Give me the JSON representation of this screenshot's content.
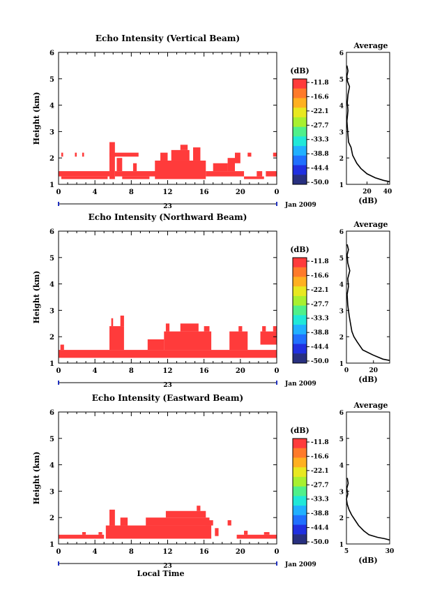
{
  "chart_data": [
    {
      "type": "heatmap",
      "title": "Echo Intensity (Vertical Beam)",
      "ylabel": "Height (km)",
      "ylim": [
        1,
        6
      ],
      "yticks": [
        "1",
        "2",
        "3",
        "4",
        "5",
        "6"
      ],
      "xlim": [
        0,
        24
      ],
      "xticks": [
        "0",
        "4",
        "8",
        "12",
        "16",
        "20",
        "0"
      ],
      "date_label": "23",
      "month_label": "Jan 2009",
      "colorbar": {
        "unit": "(dB)",
        "levels": [
          "-11.8",
          "-16.6",
          "-22.1",
          "-27.7",
          "-33.3",
          "-38.8",
          "-44.4",
          "-50.0"
        ]
      },
      "blocks": [
        {
          "x0": 0,
          "x1": 5.6,
          "y0": 1.3,
          "y1": 1.5
        },
        {
          "x0": 0.3,
          "x1": 5.4,
          "y0": 1.2,
          "y1": 1.3
        },
        {
          "x0": 0.3,
          "x1": 0.5,
          "y0": 2.05,
          "y1": 2.2
        },
        {
          "x0": 1.8,
          "x1": 2.0,
          "y0": 2.05,
          "y1": 2.2
        },
        {
          "x0": 2.6,
          "x1": 2.8,
          "y0": 2.05,
          "y1": 2.2
        },
        {
          "x0": 5.6,
          "x1": 6.2,
          "y0": 1.2,
          "y1": 2.6
        },
        {
          "x0": 5.6,
          "x1": 8.8,
          "y0": 2.05,
          "y1": 2.2
        },
        {
          "x0": 6.2,
          "x1": 10.8,
          "y0": 1.3,
          "y1": 1.5
        },
        {
          "x0": 6.4,
          "x1": 7.0,
          "y0": 1.5,
          "y1": 2.0
        },
        {
          "x0": 7.0,
          "x1": 10.0,
          "y0": 1.2,
          "y1": 1.3
        },
        {
          "x0": 8.2,
          "x1": 8.6,
          "y0": 1.5,
          "y1": 1.8
        },
        {
          "x0": 10.6,
          "x1": 16.2,
          "y0": 1.2,
          "y1": 1.9
        },
        {
          "x0": 11.2,
          "x1": 12.0,
          "y0": 1.9,
          "y1": 2.2
        },
        {
          "x0": 12.4,
          "x1": 14.4,
          "y0": 1.9,
          "y1": 2.3
        },
        {
          "x0": 13.4,
          "x1": 14.2,
          "y0": 2.3,
          "y1": 2.5
        },
        {
          "x0": 14.8,
          "x1": 15.6,
          "y0": 1.9,
          "y1": 2.4
        },
        {
          "x0": 16.2,
          "x1": 20.4,
          "y0": 1.3,
          "y1": 1.5
        },
        {
          "x0": 17.0,
          "x1": 18.6,
          "y0": 1.5,
          "y1": 1.8
        },
        {
          "x0": 18.6,
          "x1": 19.4,
          "y0": 1.5,
          "y1": 2.0
        },
        {
          "x0": 19.4,
          "x1": 20.0,
          "y0": 1.8,
          "y1": 2.2
        },
        {
          "x0": 20.4,
          "x1": 22.6,
          "y0": 1.2,
          "y1": 1.3
        },
        {
          "x0": 20.8,
          "x1": 21.2,
          "y0": 2.05,
          "y1": 2.2
        },
        {
          "x0": 21.8,
          "x1": 22.4,
          "y0": 1.3,
          "y1": 1.5
        },
        {
          "x0": 22.8,
          "x1": 24.0,
          "y0": 1.3,
          "y1": 1.5
        },
        {
          "x0": 23.6,
          "x1": 24.0,
          "y0": 2.05,
          "y1": 2.2
        }
      ],
      "average": {
        "title": "Average",
        "xlabel": "(dB)",
        "xlim": [
          0,
          42
        ],
        "xticks": [
          20,
          40
        ],
        "profile": [
          [
            0.5,
            5.5
          ],
          [
            1.5,
            5.3
          ],
          [
            0.5,
            5.1
          ],
          [
            1.0,
            4.9
          ],
          [
            3.0,
            4.7
          ],
          [
            1.5,
            4.4
          ],
          [
            0.8,
            4.1
          ],
          [
            1.5,
            3.8
          ],
          [
            0.5,
            3.4
          ],
          [
            1.2,
            3.0
          ],
          [
            2.0,
            2.6
          ],
          [
            4.5,
            2.4
          ],
          [
            6.0,
            2.1
          ],
          [
            10.0,
            1.8
          ],
          [
            14.0,
            1.6
          ],
          [
            20.0,
            1.4
          ],
          [
            28.0,
            1.25
          ],
          [
            36.0,
            1.15
          ],
          [
            42.0,
            1.1
          ]
        ]
      }
    },
    {
      "type": "heatmap",
      "title": "Echo Intensity (Northward Beam)",
      "ylabel": "Height (km)",
      "ylim": [
        1,
        6
      ],
      "yticks": [
        "1",
        "2",
        "3",
        "4",
        "5",
        "6"
      ],
      "xlim": [
        0,
        24
      ],
      "xticks": [
        "0",
        "4",
        "8",
        "12",
        "16",
        "20",
        "0"
      ],
      "date_label": "23",
      "month_label": "Jan 2009",
      "colorbar": {
        "unit": "(dB)",
        "levels": [
          "-11.8",
          "-16.6",
          "-22.1",
          "-27.7",
          "-33.3",
          "-38.8",
          "-44.4",
          "-50.0"
        ]
      },
      "blocks": [
        {
          "x0": 0,
          "x1": 24,
          "y0": 1.2,
          "y1": 1.5
        },
        {
          "x0": 0.2,
          "x1": 0.6,
          "y0": 1.5,
          "y1": 1.7
        },
        {
          "x0": 5.6,
          "x1": 7.2,
          "y0": 1.5,
          "y1": 2.4
        },
        {
          "x0": 5.8,
          "x1": 6.0,
          "y0": 2.4,
          "y1": 2.7
        },
        {
          "x0": 6.8,
          "x1": 7.2,
          "y0": 2.4,
          "y1": 2.8
        },
        {
          "x0": 9.8,
          "x1": 11.6,
          "y0": 1.5,
          "y1": 1.9
        },
        {
          "x0": 11.6,
          "x1": 16.8,
          "y0": 1.5,
          "y1": 2.2
        },
        {
          "x0": 11.8,
          "x1": 12.2,
          "y0": 2.2,
          "y1": 2.5
        },
        {
          "x0": 13.4,
          "x1": 15.4,
          "y0": 2.2,
          "y1": 2.5
        },
        {
          "x0": 16.0,
          "x1": 16.6,
          "y0": 2.2,
          "y1": 2.4
        },
        {
          "x0": 18.8,
          "x1": 20.8,
          "y0": 1.5,
          "y1": 2.2
        },
        {
          "x0": 19.8,
          "x1": 20.2,
          "y0": 2.2,
          "y1": 2.4
        },
        {
          "x0": 22.2,
          "x1": 24.0,
          "y0": 1.7,
          "y1": 2.2
        },
        {
          "x0": 22.4,
          "x1": 22.8,
          "y0": 2.2,
          "y1": 2.4
        },
        {
          "x0": 23.6,
          "x1": 24.0,
          "y0": 2.2,
          "y1": 2.4
        }
      ],
      "average": {
        "title": "Average",
        "xlabel": "(dB)",
        "xlim": [
          0,
          32
        ],
        "xticks": [
          0,
          20
        ],
        "profile": [
          [
            0.5,
            5.5
          ],
          [
            1.5,
            5.3
          ],
          [
            0.5,
            5.1
          ],
          [
            1.0,
            4.8
          ],
          [
            2.5,
            4.5
          ],
          [
            1.0,
            4.2
          ],
          [
            1.5,
            3.9
          ],
          [
            0.5,
            3.6
          ],
          [
            1.0,
            3.2
          ],
          [
            2.0,
            2.8
          ],
          [
            3.0,
            2.5
          ],
          [
            4.0,
            2.2
          ],
          [
            5.5,
            2.0
          ],
          [
            8.0,
            1.8
          ],
          [
            12.0,
            1.5
          ],
          [
            20.0,
            1.3
          ],
          [
            27.0,
            1.15
          ],
          [
            32.0,
            1.1
          ]
        ]
      }
    },
    {
      "type": "heatmap",
      "title": "Echo Intensity (Eastward Beam)",
      "ylabel": "Height (km)",
      "ylim": [
        1,
        6
      ],
      "yticks": [
        "1",
        "2",
        "3",
        "4",
        "5",
        "6"
      ],
      "xlim": [
        0,
        24
      ],
      "xticks": [
        "0",
        "4",
        "8",
        "12",
        "16",
        "20",
        "0"
      ],
      "xlabel": "Local Time",
      "date_label": "23",
      "month_label": "Jan 2009",
      "colorbar": {
        "unit": "(dB)",
        "levels": [
          "-11.8",
          "-16.6",
          "-22.1",
          "-27.7",
          "-33.3",
          "-38.8",
          "-44.4",
          "-50.0"
        ]
      },
      "blocks": [
        {
          "x0": 0,
          "x1": 5.0,
          "y0": 1.2,
          "y1": 1.35
        },
        {
          "x0": 2.6,
          "x1": 3.0,
          "y0": 1.35,
          "y1": 1.45
        },
        {
          "x0": 4.4,
          "x1": 4.8,
          "y0": 1.35,
          "y1": 1.45
        },
        {
          "x0": 5.2,
          "x1": 16.8,
          "y0": 1.2,
          "y1": 1.7
        },
        {
          "x0": 5.6,
          "x1": 6.2,
          "y0": 1.7,
          "y1": 2.3
        },
        {
          "x0": 6.8,
          "x1": 7.6,
          "y0": 1.7,
          "y1": 2.0
        },
        {
          "x0": 9.6,
          "x1": 16.6,
          "y0": 1.7,
          "y1": 2.0
        },
        {
          "x0": 11.8,
          "x1": 16.2,
          "y0": 2.0,
          "y1": 2.25
        },
        {
          "x0": 15.2,
          "x1": 15.6,
          "y0": 2.25,
          "y1": 2.45
        },
        {
          "x0": 16.2,
          "x1": 17.0,
          "y0": 1.7,
          "y1": 1.9
        },
        {
          "x0": 17.2,
          "x1": 17.6,
          "y0": 1.3,
          "y1": 1.6
        },
        {
          "x0": 18.6,
          "x1": 19.0,
          "y0": 1.7,
          "y1": 1.9
        },
        {
          "x0": 19.6,
          "x1": 24.0,
          "y0": 1.2,
          "y1": 1.35
        },
        {
          "x0": 20.4,
          "x1": 20.8,
          "y0": 1.35,
          "y1": 1.5
        },
        {
          "x0": 22.6,
          "x1": 23.2,
          "y0": 1.35,
          "y1": 1.45
        }
      ],
      "average": {
        "title": "Average",
        "xlabel": "(dB)",
        "xlim": [
          5,
          30
        ],
        "xticks": [
          5,
          30
        ],
        "profile": [
          [
            5.5,
            3.5
          ],
          [
            6.0,
            3.3
          ],
          [
            5.2,
            3.1
          ],
          [
            5.8,
            2.9
          ],
          [
            5.0,
            2.7
          ],
          [
            5.5,
            2.5
          ],
          [
            6.5,
            2.3
          ],
          [
            8.0,
            2.1
          ],
          [
            10.0,
            1.9
          ],
          [
            12.0,
            1.7
          ],
          [
            15.0,
            1.5
          ],
          [
            18.0,
            1.35
          ],
          [
            23.0,
            1.25
          ],
          [
            27.0,
            1.2
          ],
          [
            30.0,
            1.15
          ]
        ]
      }
    }
  ]
}
